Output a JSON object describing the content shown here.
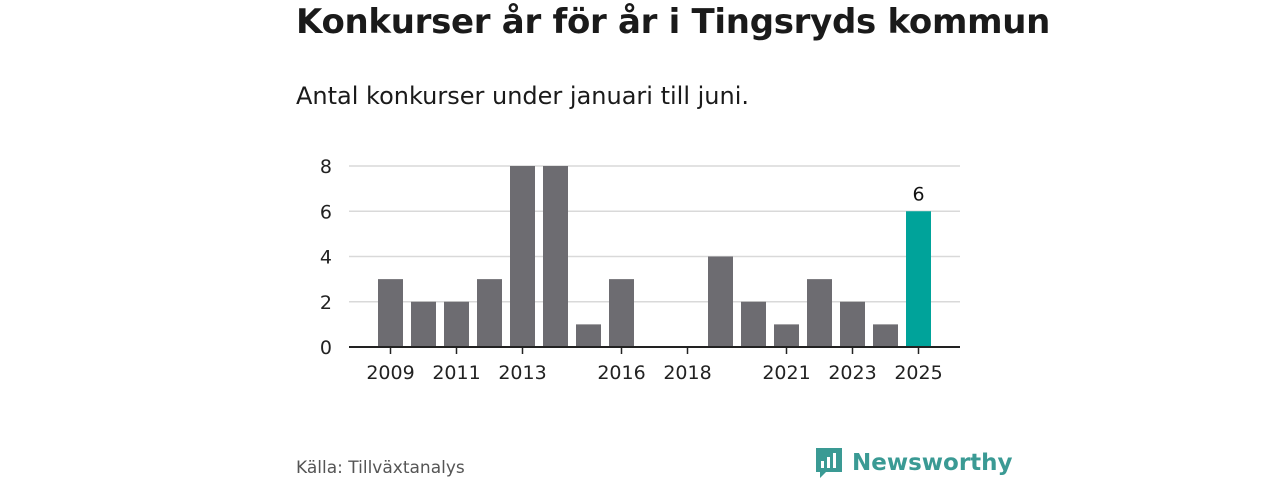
{
  "header": {
    "title": "Konkurser år för år i Tingsryds kommun",
    "subtitle": "Antal konkurser under januari till juni."
  },
  "footer": {
    "source": "Källa: Tillväxtanalys",
    "brand": "Newsworthy"
  },
  "colors": {
    "bar": "#6d6c71",
    "highlight": "#00a39a",
    "grid": "#d9d9d9",
    "axis": "#222222",
    "brand": "#3a9a94"
  },
  "chart_data": {
    "type": "bar",
    "categories": [
      "2009",
      "2010",
      "2011",
      "2012",
      "2013",
      "2014",
      "2015",
      "2016",
      "2017",
      "2018",
      "2019",
      "2020",
      "2021",
      "2022",
      "2023",
      "2024",
      "2025"
    ],
    "values": [
      3,
      2,
      2,
      3,
      8,
      8,
      1,
      3,
      0,
      0,
      4,
      2,
      1,
      3,
      2,
      1,
      6
    ],
    "x_tick_labels": [
      "2009",
      "2011",
      "2013",
      "2016",
      "2018",
      "2021",
      "2023",
      "2025"
    ],
    "y_ticks": [
      0,
      2,
      4,
      6,
      8
    ],
    "ylim": [
      0,
      8
    ],
    "highlight_category": "2025",
    "data_labels": [
      {
        "category": "2025",
        "text": "6"
      }
    ],
    "grid": true,
    "title": "Konkurser år för år i Tingsryds kommun",
    "subtitle": "Antal konkurser under januari till juni.",
    "xlabel": "",
    "ylabel": ""
  }
}
